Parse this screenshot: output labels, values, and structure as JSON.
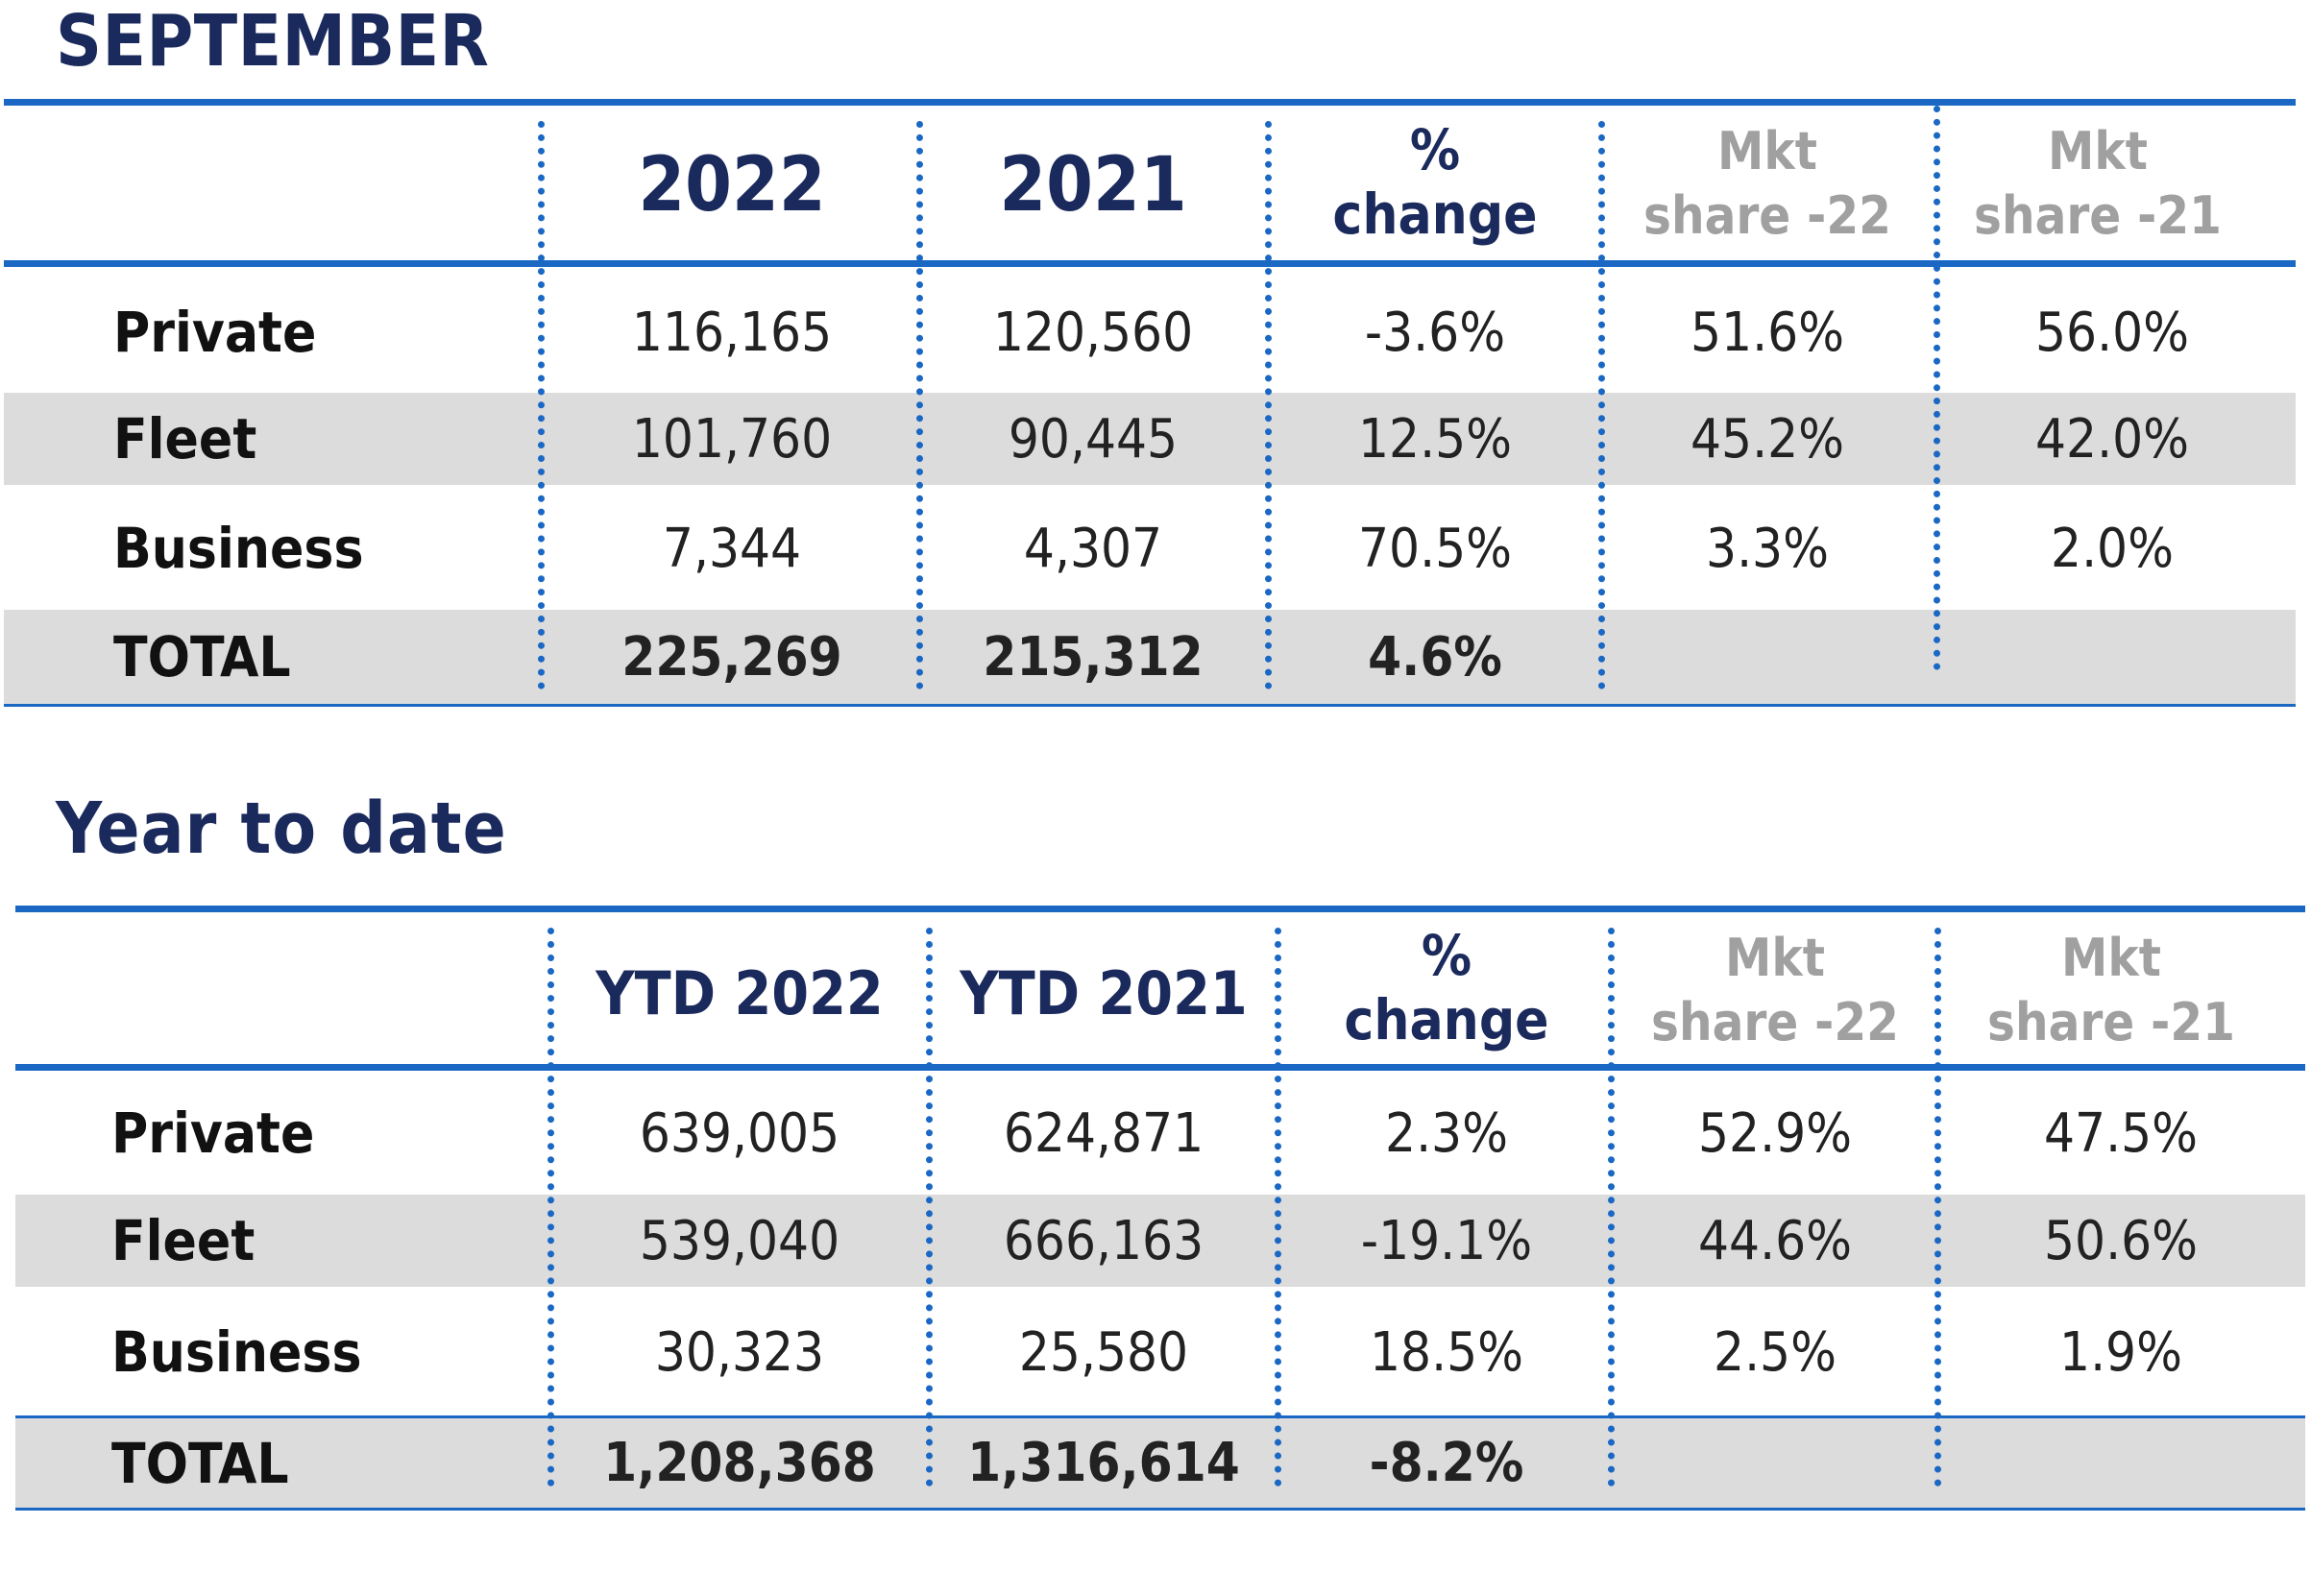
{
  "sections": [
    {
      "title": "SEPTEMBER",
      "headers": {
        "col1": "2022",
        "col2": "2021",
        "pct_line1": "%",
        "pct_line2": "change",
        "mkt22_line1": "Mkt",
        "mkt22_line2": "share -22",
        "mkt21_line1": "Mkt",
        "mkt21_line2": "share -21"
      },
      "rows": [
        {
          "label": "Private",
          "v1": "116,165",
          "v2": "120,560",
          "pct": "-3.6%",
          "mkt22": "51.6%",
          "mkt21": "56.0%"
        },
        {
          "label": "Fleet",
          "v1": "101,760",
          "v2": "90,445",
          "pct": "12.5%",
          "mkt22": "45.2%",
          "mkt21": "42.0%"
        },
        {
          "label": "Business",
          "v1": "7,344",
          "v2": "4,307",
          "pct": "70.5%",
          "mkt22": "3.3%",
          "mkt21": "2.0%"
        },
        {
          "label": "TOTAL",
          "v1": "225,269",
          "v2": "215,312",
          "pct": "4.6%",
          "mkt22": "",
          "mkt21": ""
        }
      ]
    },
    {
      "title": "Year to date",
      "headers": {
        "col1": "YTD 2022",
        "col2": "YTD 2021",
        "pct_line1": "%",
        "pct_line2": "change",
        "mkt22_line1": "Mkt",
        "mkt22_line2": "share -22",
        "mkt21_line1": "Mkt",
        "mkt21_line2": "share -21"
      },
      "rows": [
        {
          "label": "Private",
          "v1": "639,005",
          "v2": "624,871",
          "pct": "2.3%",
          "mkt22": "52.9%",
          "mkt21": "47.5%"
        },
        {
          "label": "Fleet",
          "v1": "539,040",
          "v2": "666,163",
          "pct": "-19.1%",
          "mkt22": "44.6%",
          "mkt21": "50.6%"
        },
        {
          "label": "Business",
          "v1": "30,323",
          "v2": "25,580",
          "pct": "18.5%",
          "mkt22": "2.5%",
          "mkt21": "1.9%"
        },
        {
          "label": "TOTAL",
          "v1": "1,208,368",
          "v2": "1,316,614",
          "pct": "-8.2%",
          "mkt22": "",
          "mkt21": ""
        }
      ]
    }
  ],
  "colors": {
    "title": "#1b2a5c",
    "rule": "#1a68c4",
    "shade": "#dcdcdc",
    "mkt_header": "#a0a0a0"
  }
}
